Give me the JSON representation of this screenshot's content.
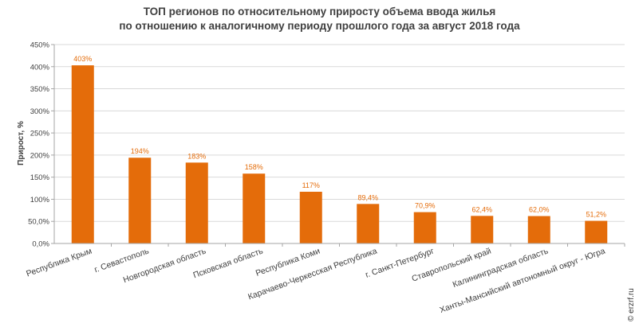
{
  "chart_data": {
    "type": "bar",
    "title_line1": "ТОП регионов по относительному приросту объема ввода жилья",
    "title_line2": "по отношению к аналогичному периоду прошлого года за август 2018 года",
    "ylabel": "Прирост, %",
    "xlabel": "",
    "ylim": [
      0,
      450
    ],
    "yticks": [
      0,
      50,
      100,
      150,
      200,
      250,
      300,
      350,
      400,
      450
    ],
    "ytick_labels": [
      "0,0%",
      "50,0%",
      "100%",
      "150%",
      "200%",
      "250%",
      "300%",
      "350%",
      "400%",
      "450%"
    ],
    "grid": true,
    "categories": [
      "Республика Крым",
      "г. Севастополь",
      "Новгородская область",
      "Псковская область",
      "Республика Коми",
      "Карачаево-Черкесская Республика",
      "г. Санкт-Петербург",
      "Ставропольский край",
      "Калининградская область",
      "Ханты-Мансийский автономный округ - Югра"
    ],
    "values": [
      403,
      194,
      183,
      158,
      117,
      89.4,
      70.9,
      62.4,
      62.0,
      51.2
    ],
    "value_labels": [
      "403%",
      "194%",
      "183%",
      "158%",
      "117%",
      "89,4%",
      "70,9%",
      "62,4%",
      "62,0%",
      "51,2%"
    ],
    "colors": {
      "bar": "#E46C0A",
      "value_label": "#E46C0A",
      "grid": "#D9D9D9",
      "axis": "#A6A6A6",
      "text": "#404040"
    }
  },
  "watermark": "© erzrf.ru"
}
